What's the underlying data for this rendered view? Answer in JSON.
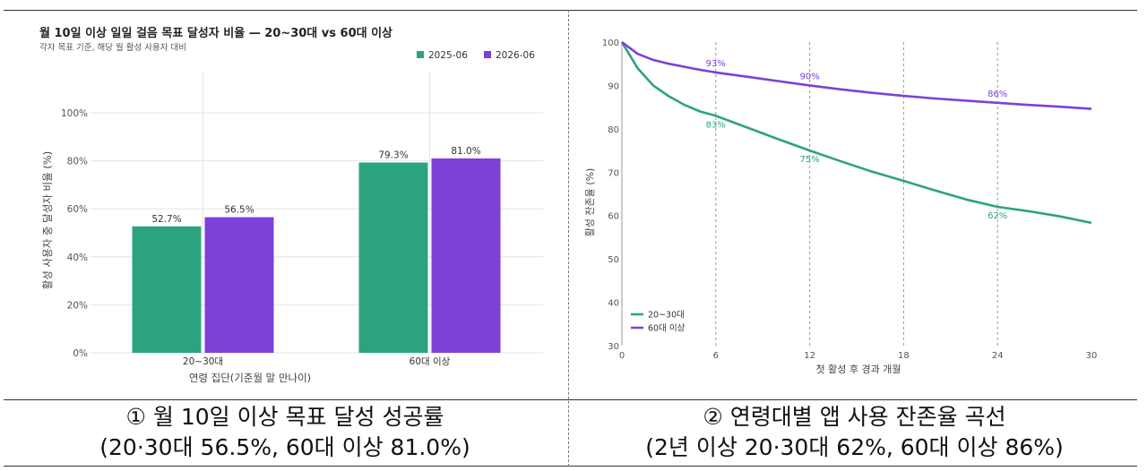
{
  "colors": {
    "green": "#2ca37f",
    "purple": "#7d40d9",
    "grid": "#e4e4e4",
    "axis_text": "#555555"
  },
  "left_chart": {
    "chart_data": {
      "type": "bar",
      "title": "월 10일 이상 일일 걸음 목표 달성자 비율 — 20~30대 vs 60대 이상",
      "subtitle": "각자 목표 기준, 해당 월 활성 사용자 대비",
      "xlabel": "연령 집단(기준월 말 만나이)",
      "ylabel": "활성 사용자 중 달성자 비율 (%)",
      "categories": [
        "20~30대",
        "60대 이상"
      ],
      "series": [
        {
          "name": "2025-06",
          "values": [
            52.7,
            79.3
          ],
          "labels": [
            "52.7%",
            "79.3%"
          ]
        },
        {
          "name": "2026-06",
          "values": [
            56.5,
            81.0
          ],
          "labels": [
            "56.5%",
            "81.0%"
          ]
        }
      ],
      "ylim": [
        0,
        100
      ],
      "yticks": [
        0,
        20,
        40,
        60,
        80,
        100
      ],
      "yticklabels": [
        "0%",
        "20%",
        "40%",
        "60%",
        "80%",
        "100%"
      ],
      "legend": "top-right",
      "grid": true
    }
  },
  "right_chart": {
    "chart_data": {
      "type": "line",
      "xlabel": "첫 활성 후 경과 개월",
      "ylabel": "활성 잔존율 (%)",
      "xlim": [
        0,
        30
      ],
      "ylim": [
        30,
        100
      ],
      "xticks": [
        0,
        6,
        12,
        18,
        24,
        30
      ],
      "yticks": [
        30,
        40,
        50,
        60,
        70,
        80,
        90,
        100
      ],
      "legend": "bottom-left",
      "grid": "vertical dashed",
      "series": [
        {
          "name": "20~30대",
          "x": [
            0,
            1,
            2,
            3,
            4,
            5,
            6,
            8,
            10,
            12,
            14,
            16,
            18,
            20,
            22,
            24,
            26,
            28,
            30
          ],
          "values": [
            100,
            94,
            90,
            87.5,
            85.5,
            84,
            83,
            80.3,
            77.6,
            75,
            72.5,
            70.1,
            68,
            65.8,
            63.7,
            62,
            61,
            59.8,
            58.3
          ],
          "annotations": [
            {
              "x": 6,
              "y": 83,
              "text": "83%"
            },
            {
              "x": 12,
              "y": 75,
              "text": "75%"
            },
            {
              "x": 24,
              "y": 62,
              "text": "62%"
            }
          ]
        },
        {
          "name": "60대 이상",
          "x": [
            0,
            1,
            2,
            3,
            4,
            5,
            6,
            8,
            10,
            12,
            14,
            16,
            18,
            20,
            22,
            24,
            26,
            28,
            30
          ],
          "values": [
            100,
            97.3,
            95.9,
            95,
            94.3,
            93.6,
            93,
            92,
            91,
            90,
            89.1,
            88.3,
            87.6,
            87,
            86.5,
            86,
            85.5,
            85.1,
            84.6
          ],
          "annotations": [
            {
              "x": 6,
              "y": 93,
              "text": "93%"
            },
            {
              "x": 12,
              "y": 90,
              "text": "90%"
            },
            {
              "x": 24,
              "y": 86,
              "text": "86%"
            }
          ]
        }
      ]
    }
  },
  "captions": {
    "left": {
      "line1": "① 월 10일 이상 목표 달성 성공률",
      "line2": "(20·30대 56.5%, 60대 이상 81.0%)"
    },
    "right": {
      "line1": "② 연령대별 앱 사용 잔존율 곡선",
      "line2": "(2년 이상 20·30대 62%, 60대 이상 86%)"
    }
  }
}
